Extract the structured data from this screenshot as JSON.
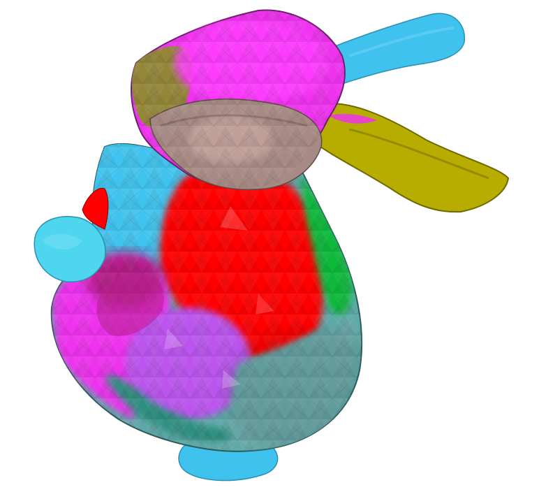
{
  "scene": {
    "subject": "bunny-mesh",
    "background_color": "#ffffff",
    "segment_colors": {
      "cyan": "#3fc3ee",
      "cyan_light": "#4fd6ef",
      "magenta": "#ee33ee",
      "magenta_dark": "#c62fc6",
      "violet": "#bb55ee",
      "olive": "#b6ad00",
      "olive_dark": "#7f7d2a",
      "brown": "#a88a84",
      "red": "#ff0000",
      "green": "#11b83a",
      "teal": "#5fa9a9",
      "teal_dark": "#2f8f80"
    }
  }
}
